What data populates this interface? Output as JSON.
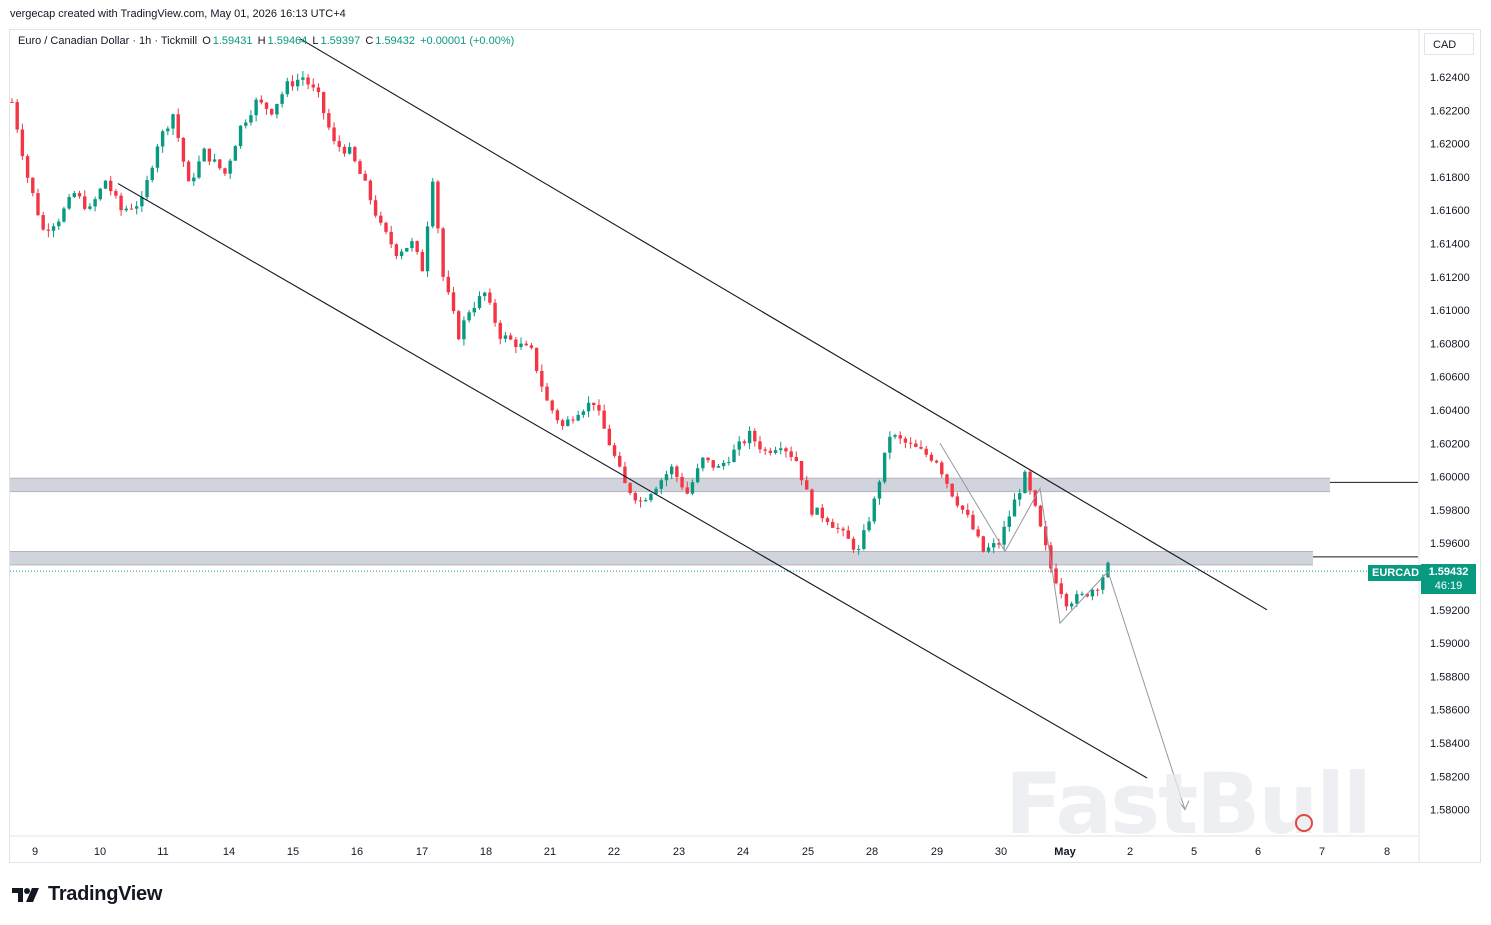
{
  "header": {
    "attribution": "vergecap created with TradingView.com, May 01, 2026 16:13 UTC+4"
  },
  "legend": {
    "symbol": "Euro / Canadian Dollar · 1h · Tickmill",
    "open_label": "O",
    "open": "1.59431",
    "high_label": "H",
    "high": "1.59464",
    "low_label": "L",
    "low": "1.59397",
    "close_label": "C",
    "close": "1.59432",
    "change": "+0.00001 (+0.00%)"
  },
  "currency": "CAD",
  "last_price": {
    "symbol": "EURCAD",
    "price": "1.59432",
    "countdown": "46:19"
  },
  "watermark": "FastBull",
  "footer": {
    "brand": "TradingView"
  },
  "colors": {
    "up": "#089981",
    "down": "#f23645",
    "line": "#131722",
    "zone": "#d1d4dc",
    "arrow": "#9598a1"
  },
  "chart_data": {
    "type": "candlestick",
    "symbol": "EURCAD",
    "timeframe": "1h",
    "y_ticks": [
      "1.62400",
      "1.62200",
      "1.62000",
      "1.61800",
      "1.61600",
      "1.61400",
      "1.61200",
      "1.61000",
      "1.60800",
      "1.60600",
      "1.60400",
      "1.60200",
      "1.60000",
      "1.59800",
      "1.59600",
      "1.59400",
      "1.59200",
      "1.59000",
      "1.58800",
      "1.58600",
      "1.58400",
      "1.58200",
      "1.58000"
    ],
    "y_values": [
      1.624,
      1.622,
      1.62,
      1.618,
      1.616,
      1.614,
      1.612,
      1.61,
      1.608,
      1.606,
      1.604,
      1.602,
      1.6,
      1.598,
      1.596,
      1.594,
      1.592,
      1.59,
      1.588,
      1.586,
      1.584,
      1.582,
      1.58
    ],
    "ylim": [
      1.5787,
      1.6263
    ],
    "x_ticks": [
      "9",
      "10",
      "11",
      "14",
      "15",
      "16",
      "17",
      "18",
      "21",
      "22",
      "23",
      "24",
      "25",
      "28",
      "29",
      "30",
      "May",
      "2",
      "5",
      "6",
      "7",
      "8"
    ],
    "price_path": [
      [
        0,
        1.6225
      ],
      [
        3,
        1.618
      ],
      [
        6,
        1.6148
      ],
      [
        9,
        1.6155
      ],
      [
        12,
        1.617
      ],
      [
        15,
        1.616
      ],
      [
        18,
        1.6178
      ],
      [
        21,
        1.616
      ],
      [
        25,
        1.6165
      ],
      [
        28,
        1.62
      ],
      [
        31,
        1.6218
      ],
      [
        34,
        1.6175
      ],
      [
        37,
        1.6195
      ],
      [
        41,
        1.6182
      ],
      [
        44,
        1.621
      ],
      [
        47,
        1.6225
      ],
      [
        50,
        1.622
      ],
      [
        53,
        1.6235
      ],
      [
        56,
        1.624
      ],
      [
        59,
        1.6228
      ],
      [
        62,
        1.62
      ],
      [
        65,
        1.6195
      ],
      [
        68,
        1.6175
      ],
      [
        71,
        1.615
      ],
      [
        74,
        1.6135
      ],
      [
        77,
        1.614
      ],
      [
        79,
        1.6125
      ],
      [
        81,
        1.618
      ],
      [
        83,
        1.612
      ],
      [
        86,
        1.6085
      ],
      [
        88,
        1.61
      ],
      [
        91,
        1.611
      ],
      [
        94,
        1.6085
      ],
      [
        97,
        1.608
      ],
      [
        100,
        1.6075
      ],
      [
        103,
        1.6045
      ],
      [
        106,
        1.603
      ],
      [
        109,
        1.604
      ],
      [
        112,
        1.6045
      ],
      [
        115,
        1.602
      ],
      [
        118,
        1.5995
      ],
      [
        121,
        1.5985
      ],
      [
        124,
        1.5995
      ],
      [
        127,
        1.6005
      ],
      [
        130,
        1.599
      ],
      [
        133,
        1.601
      ],
      [
        136,
        1.6005
      ],
      [
        139,
        1.6015
      ],
      [
        142,
        1.6025
      ],
      [
        145,
        1.6015
      ],
      [
        148,
        1.602
      ],
      [
        151,
        1.601
      ],
      [
        154,
        1.598
      ],
      [
        157,
        1.5975
      ],
      [
        160,
        1.5965
      ],
      [
        163,
        1.5955
      ],
      [
        166,
        1.5985
      ],
      [
        169,
        1.6025
      ],
      [
        172,
        1.602
      ],
      [
        175,
        1.6015
      ],
      [
        178,
        1.601
      ],
      [
        181,
        1.599
      ],
      [
        184,
        1.5975
      ],
      [
        187,
        1.5955
      ],
      [
        190,
        1.596
      ],
      [
        193,
        1.5985
      ],
      [
        195,
        1.6
      ],
      [
        197,
        1.598
      ],
      [
        200,
        1.5945
      ],
      [
        203,
        1.5925
      ],
      [
        206,
        1.5928
      ],
      [
        209,
        1.5935
      ],
      [
        211,
        1.5946
      ]
    ],
    "last_bar_index": 211,
    "last_date_index": 29,
    "drawings": {
      "channel_upper": {
        "from": [
          -17.5,
          1.6265
        ],
        "to": [
          -36,
          1.592
        ]
      },
      "channel_lower": {
        "from": [
          1.6176
        ],
        "to": [
          1.5819
        ]
      },
      "resistance_zone": [
        1.5991,
        1.5999
      ],
      "support_zone": [
        1.5947,
        1.5955
      ],
      "path_points": [
        1.602,
        1.5955,
        1.5993,
        1.5912,
        1.5943,
        1.58
      ]
    }
  }
}
